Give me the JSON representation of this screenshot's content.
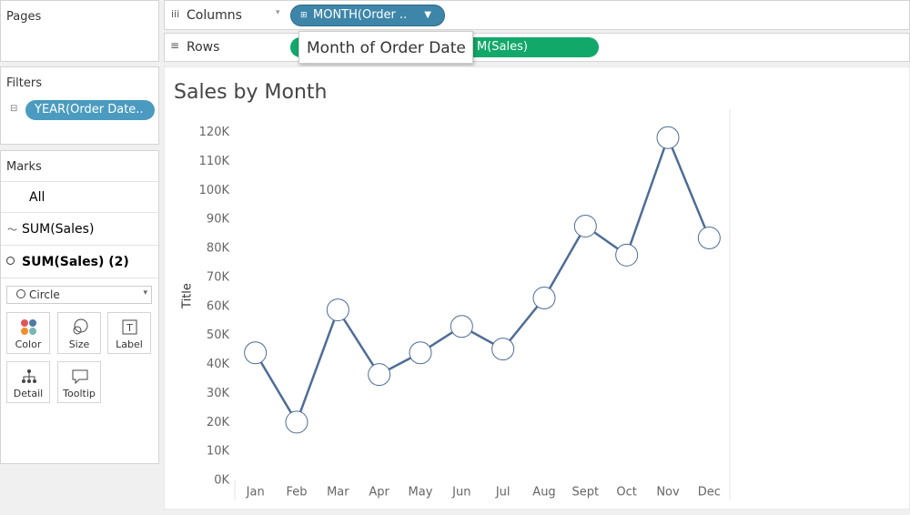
{
  "pages": {
    "title": "Pages"
  },
  "filters": {
    "title": "Filters",
    "pill": "YEAR(Order Date.."
  },
  "marks": {
    "title": "Marks",
    "cards": [
      "All",
      "SUM(Sales)",
      "SUM(Sales) (2)"
    ],
    "mark_type": "Circle",
    "buttons": [
      "Color",
      "Size",
      "Label",
      "Detail",
      "Tooltip"
    ]
  },
  "shelves": {
    "columns": {
      "label": "Columns",
      "pill": "MONTH(Order .."
    },
    "rows": {
      "label": "Rows",
      "pill": "M(Sales)"
    }
  },
  "tooltip": "Month of Order Date",
  "chart_data": {
    "type": "line",
    "title": "Sales by Month",
    "y_label": "Title",
    "categories": [
      "Jan",
      "Feb",
      "Mar",
      "Apr",
      "May",
      "Jun",
      "Jul",
      "Aug",
      "Sept",
      "Oct",
      "Nov",
      "Dec"
    ],
    "values": [
      44000,
      20100,
      58800,
      36500,
      44000,
      53100,
      45300,
      62900,
      87700,
      77700,
      118200,
      83600
    ],
    "color": "#4e6d96",
    "ylim": [
      0,
      128000
    ],
    "yticks": [
      {
        "value": 0,
        "label": "0K"
      },
      {
        "value": 10000,
        "label": "10K"
      },
      {
        "value": 20000,
        "label": "20K"
      },
      {
        "value": 30000,
        "label": "30K"
      },
      {
        "value": 40000,
        "label": "40K"
      },
      {
        "value": 50000,
        "label": "50K"
      },
      {
        "value": 60000,
        "label": "60K"
      },
      {
        "value": 70000,
        "label": "70K"
      },
      {
        "value": 80000,
        "label": "80K"
      },
      {
        "value": 90000,
        "label": "90K"
      },
      {
        "value": 100000,
        "label": "100K"
      },
      {
        "value": 110000,
        "label": "110K"
      },
      {
        "value": 120000,
        "label": "120K"
      }
    ],
    "grid": false
  }
}
